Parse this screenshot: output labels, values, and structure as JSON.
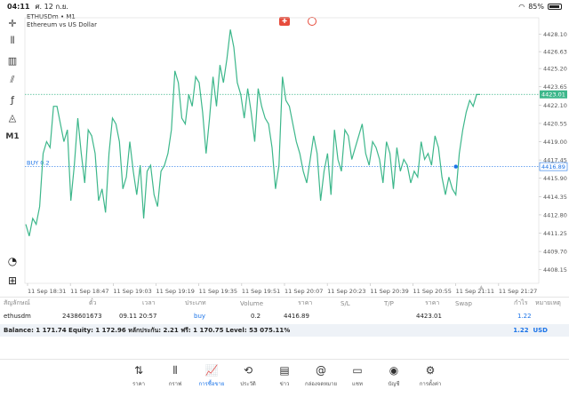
{
  "status_bar": {
    "time": "04:11",
    "date": "ศ. 12 ก.ย.",
    "battery": "85%"
  },
  "chart": {
    "symbol": "ETHUSDm • M1",
    "description": "Ethereum vs US Dollar",
    "badges": {
      "sell": "✚",
      "buy": ""
    },
    "current_price": "4423.01",
    "buy_line_label": "BUY 0.2",
    "buy_price": "4416.89",
    "price_ticks": [
      "4428.10",
      "4426.63",
      "4425.20",
      "4423.65",
      "4422.10",
      "4420.55",
      "4419.00",
      "4417.45",
      "4415.90",
      "4414.35",
      "4412.80",
      "4411.25",
      "4409.70",
      "4408.15"
    ],
    "time_ticks": [
      "11 Sep 18:31",
      "11 Sep 18:47",
      "11 Sep 19:03",
      "11 Sep 19:19",
      "11 Sep 19:35",
      "11 Sep 19:51",
      "11 Sep 20:07",
      "11 Sep 20:23",
      "11 Sep 20:39",
      "11 Sep 20:55",
      "11 Sep 21:11",
      "11 Sep 21:27"
    ]
  },
  "chart_data": {
    "type": "line",
    "y": [
      4412.0,
      4411.0,
      4412.5,
      4412.0,
      4413.5,
      4418.0,
      4419.0,
      4418.5,
      4422.0,
      4422.0,
      4420.5,
      4419.0,
      4420.0,
      4414.0,
      4417.0,
      4421.0,
      4418.0,
      4415.5,
      4420.0,
      4419.5,
      4418.0,
      4414.0,
      4415.0,
      4413.0,
      4418.0,
      4421.0,
      4420.5,
      4419.0,
      4415.0,
      4416.0,
      4419.0,
      4416.5,
      4414.5,
      4417.0,
      4412.5,
      4416.5,
      4417.0,
      4414.5,
      4413.5,
      4416.5,
      4417.0,
      4418.0,
      4420.0,
      4425.0,
      4424.0,
      4421.0,
      4420.5,
      4423.0,
      4422.0,
      4424.5,
      4424.0,
      4421.5,
      4418.0,
      4421.0,
      4424.5,
      4422.0,
      4425.5,
      4424.0,
      4426.0,
      4428.5,
      4427.0,
      4424.0,
      4423.0,
      4421.0,
      4423.5,
      4421.5,
      4419.0,
      4423.5,
      4422.0,
      4421.0,
      4420.5,
      4418.5,
      4415.0,
      4417.0,
      4424.5,
      4422.5,
      4422.0,
      4420.5,
      4419.0,
      4418.0,
      4416.5,
      4415.5,
      4417.5,
      4419.5,
      4418.0,
      4414.0,
      4416.5,
      4418.0,
      4414.5,
      4420.0,
      4417.5,
      4416.5,
      4420.0,
      4419.5,
      4417.5,
      4418.5,
      4419.5,
      4420.5,
      4418.0,
      4417.0,
      4419.0,
      4418.5,
      4417.5,
      4415.5,
      4419.0,
      4418.0,
      4415.0,
      4418.5,
      4416.5,
      4417.5,
      4417.0,
      4415.5,
      4416.5,
      4416.0,
      4419.0,
      4417.5,
      4418.0,
      4417.0,
      4419.5,
      4418.5,
      4416.0,
      4414.5,
      4416.0,
      4415.0,
      4414.5,
      4418.0,
      4420.0,
      4421.5,
      4422.5,
      4422.0,
      4423.0,
      4423.0
    ],
    "ylim": [
      4407.0,
      4429.5
    ],
    "current_price": 4423.01,
    "buy_price": 4416.89,
    "buy_marker_index": 124,
    "grid": true
  },
  "table": {
    "headers": [
      "สัญลักษณ์",
      "ตั๋ว",
      "เวลา",
      "ประเภท",
      "Volume",
      "ราคา",
      "S/L",
      "T/P",
      "ราคา",
      "Swap",
      "กำไร",
      "หมายเหตุ"
    ],
    "row": {
      "symbol": "ethusdm",
      "ticket": "2438601673",
      "time": "09.11 20:57",
      "type": "buy",
      "volume": "0.2",
      "open_price": "4416.89",
      "sl": "",
      "tp": "",
      "price": "4423.01",
      "swap": "",
      "profit": "1.22",
      "comment": ""
    }
  },
  "balance": {
    "text": "Balance: 1 171.74 Equity: 1 172.96 หลักประกัน: 2.21 ฟรี: 1 170.75 Level: 53 075.11%",
    "profit": "1.22",
    "currency": "USD"
  },
  "nav": [
    {
      "label": "ราคา",
      "icon": "quotes-icon",
      "glyph": "⇅"
    },
    {
      "label": "กราฟ",
      "icon": "chart-icon",
      "glyph": "⫴"
    },
    {
      "label": "การซื้อขาย",
      "icon": "trade-icon",
      "glyph": "📈"
    },
    {
      "label": "ประวัติ",
      "icon": "history-icon",
      "glyph": "⟲"
    },
    {
      "label": "ข่าว",
      "icon": "news-icon",
      "glyph": "▤"
    },
    {
      "label": "กล่องจดหมาย",
      "icon": "mail-icon",
      "glyph": "@"
    },
    {
      "label": "แชท",
      "icon": "chat-icon",
      "glyph": "▭"
    },
    {
      "label": "บัญชี",
      "icon": "account-icon",
      "glyph": "◉"
    },
    {
      "label": "การตั้งค่า",
      "icon": "settings-icon",
      "glyph": "⚙"
    }
  ]
}
